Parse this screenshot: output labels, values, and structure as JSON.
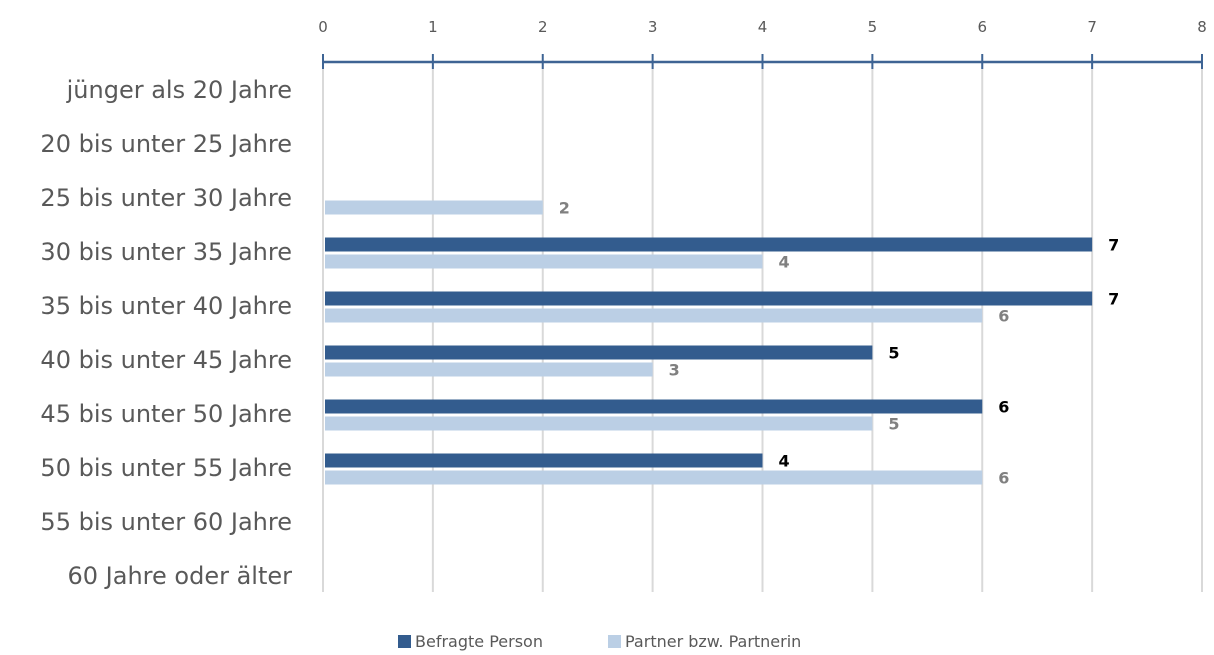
{
  "chart_data": {
    "type": "bar",
    "orientation": "horizontal",
    "categories": [
      "jünger als 20 Jahre",
      "20 bis unter 25 Jahre",
      "25 bis unter 30 Jahre",
      "30 bis unter 35 Jahre",
      "35 bis unter 40 Jahre",
      "40 bis unter 45 Jahre",
      "45 bis unter 50 Jahre",
      "50 bis unter 55 Jahre",
      "55 bis unter 60 Jahre",
      "60 Jahre oder älter"
    ],
    "series": [
      {
        "name": "Befragte Person",
        "color": "#335C8E",
        "label_color": "#000000",
        "values": [
          null,
          null,
          null,
          7,
          7,
          5,
          6,
          4,
          null,
          null
        ]
      },
      {
        "name": "Partner bzw. Partnerin",
        "color": "#BBCFE5",
        "label_color": "#808080",
        "values": [
          null,
          null,
          2,
          4,
          6,
          3,
          5,
          6,
          null,
          null
        ]
      }
    ],
    "xlim": [
      0,
      8
    ],
    "xticks": [
      0,
      1,
      2,
      3,
      4,
      5,
      6,
      7,
      8
    ],
    "axis_position": "top",
    "grid": true,
    "legend_position": "bottom",
    "title": "",
    "xlabel": "",
    "ylabel": ""
  }
}
